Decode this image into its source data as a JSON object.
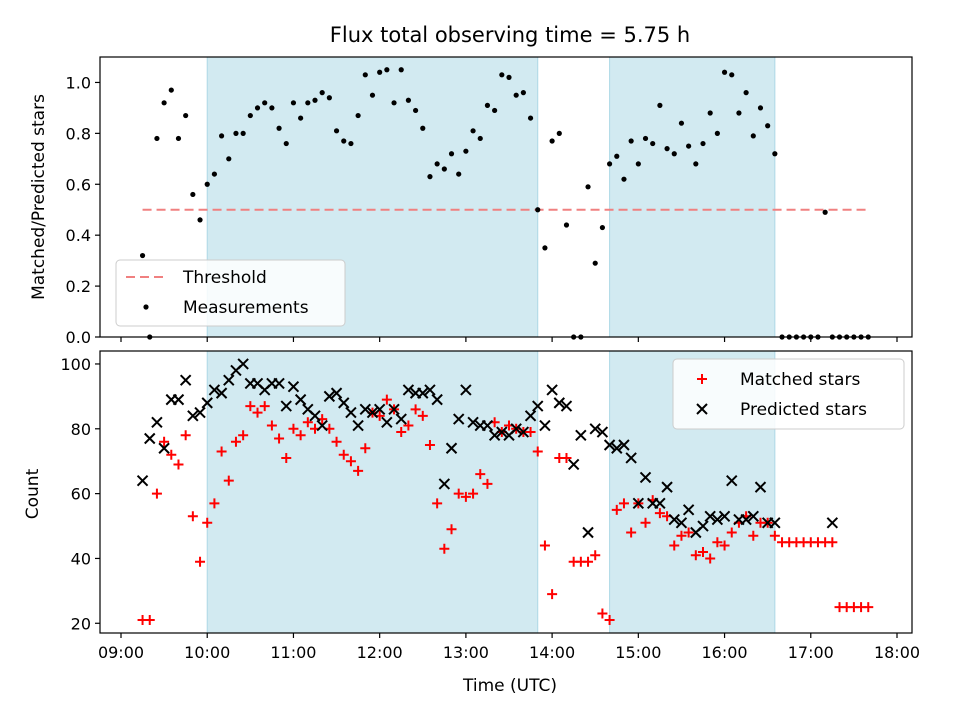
{
  "title": "Flux total observing time = 5.75 h",
  "colors": {
    "shade": "#add8e6",
    "threshold": "#f08080",
    "measurement": "#000000",
    "matched": "#ff0000",
    "predicted": "#000000"
  },
  "chart_data": [
    {
      "type": "scatter",
      "xlabel": "",
      "ylabel": "Matched/Predicted stars",
      "xlim": [
        "09:00",
        "18:00"
      ],
      "ylim": [
        0,
        1.1
      ],
      "yticks": [
        "0.0",
        "0.2",
        "0.4",
        "0.6",
        "0.8",
        "1.0"
      ],
      "grid": false,
      "legend_position": "lower-left",
      "shaded_intervals": [
        [
          "10:00",
          "13:50"
        ],
        [
          "14:40",
          "16:35"
        ]
      ],
      "threshold": {
        "name": "Threshold",
        "y": 0.5,
        "x_range": [
          "09:15",
          "17:40"
        ]
      },
      "series": [
        {
          "name": "Measurements",
          "x": [
            "09:15",
            "09:20",
            "09:25",
            "09:30",
            "09:35",
            "09:40",
            "09:45",
            "09:50",
            "09:55",
            "10:00",
            "10:05",
            "10:10",
            "10:15",
            "10:20",
            "10:25",
            "10:30",
            "10:35",
            "10:40",
            "10:45",
            "10:50",
            "10:55",
            "11:00",
            "11:05",
            "11:10",
            "11:15",
            "11:20",
            "11:25",
            "11:30",
            "11:35",
            "11:40",
            "11:45",
            "11:50",
            "11:55",
            "12:00",
            "12:05",
            "12:10",
            "12:15",
            "12:20",
            "12:25",
            "12:30",
            "12:35",
            "12:40",
            "12:45",
            "12:50",
            "12:55",
            "13:00",
            "13:05",
            "13:10",
            "13:15",
            "13:20",
            "13:25",
            "13:30",
            "13:35",
            "13:40",
            "13:45",
            "13:50",
            "13:55",
            "14:00",
            "14:05",
            "14:10",
            "14:15",
            "14:20",
            "14:25",
            "14:30",
            "14:35",
            "14:40",
            "14:45",
            "14:50",
            "14:55",
            "15:00",
            "15:05",
            "15:10",
            "15:15",
            "15:20",
            "15:25",
            "15:30",
            "15:35",
            "15:40",
            "15:45",
            "15:50",
            "15:55",
            "16:00",
            "16:05",
            "16:10",
            "16:15",
            "16:20",
            "16:25",
            "16:30",
            "16:35",
            "16:40",
            "16:45",
            "16:50",
            "16:55",
            "17:00",
            "17:05",
            "17:10",
            "17:15",
            "17:20",
            "17:25",
            "17:30",
            "17:35",
            "17:40"
          ],
          "y": [
            0.32,
            0.0,
            0.78,
            0.92,
            0.97,
            0.78,
            0.87,
            0.56,
            0.46,
            0.6,
            0.64,
            0.79,
            0.7,
            0.8,
            0.8,
            0.87,
            0.9,
            0.92,
            0.9,
            0.82,
            0.76,
            0.92,
            0.86,
            0.92,
            0.93,
            0.96,
            0.94,
            0.81,
            0.77,
            0.76,
            0.87,
            1.03,
            0.95,
            1.04,
            1.05,
            0.92,
            1.05,
            0.93,
            0.89,
            0.82,
            0.63,
            0.68,
            0.66,
            0.72,
            0.64,
            0.73,
            0.81,
            0.78,
            0.91,
            0.89,
            1.03,
            1.02,
            0.95,
            0.96,
            0.86,
            0.5,
            0.35,
            0.77,
            0.8,
            0.44,
            0.0,
            0.0,
            0.59,
            0.29,
            0.43,
            0.68,
            0.71,
            0.62,
            0.77,
            0.68,
            0.78,
            0.76,
            0.91,
            0.74,
            0.72,
            0.84,
            0.75,
            0.68,
            0.76,
            0.88,
            0.8,
            1.04,
            1.03,
            0.88,
            0.96,
            0.79,
            0.9,
            0.83,
            0.72,
            0.0,
            0.0,
            0.0,
            0.0,
            0.0,
            0.0,
            0.49,
            0.0,
            0.0,
            0.0,
            0.0,
            0.0,
            0.0
          ]
        }
      ]
    },
    {
      "type": "scatter",
      "xlabel": "Time (UTC)",
      "ylabel": "Count",
      "xlim": [
        "09:00",
        "18:00"
      ],
      "ylim": [
        17,
        104
      ],
      "xticks": [
        "09:00",
        "10:00",
        "11:00",
        "12:00",
        "13:00",
        "14:00",
        "15:00",
        "16:00",
        "17:00",
        "18:00"
      ],
      "yticks": [
        "20",
        "40",
        "60",
        "80",
        "100"
      ],
      "grid": false,
      "legend_position": "upper-right",
      "shaded_intervals": [
        [
          "10:00",
          "13:50"
        ],
        [
          "14:40",
          "16:35"
        ]
      ],
      "series": [
        {
          "name": "Matched stars",
          "marker": "+",
          "x": [
            "09:15",
            "09:20",
            "09:25",
            "09:30",
            "09:35",
            "09:40",
            "09:45",
            "09:50",
            "09:55",
            "10:00",
            "10:05",
            "10:10",
            "10:15",
            "10:20",
            "10:25",
            "10:30",
            "10:35",
            "10:40",
            "10:45",
            "10:50",
            "10:55",
            "11:00",
            "11:05",
            "11:10",
            "11:15",
            "11:20",
            "11:25",
            "11:30",
            "11:35",
            "11:40",
            "11:45",
            "11:50",
            "11:55",
            "12:00",
            "12:05",
            "12:10",
            "12:15",
            "12:20",
            "12:25",
            "12:30",
            "12:35",
            "12:40",
            "12:45",
            "12:50",
            "12:55",
            "13:00",
            "13:05",
            "13:10",
            "13:15",
            "13:20",
            "13:25",
            "13:30",
            "13:35",
            "13:40",
            "13:45",
            "13:50",
            "13:55",
            "14:00",
            "14:05",
            "14:10",
            "14:15",
            "14:20",
            "14:25",
            "14:30",
            "14:35",
            "14:40",
            "14:45",
            "14:50",
            "14:55",
            "15:00",
            "15:05",
            "15:10",
            "15:15",
            "15:20",
            "15:25",
            "15:30",
            "15:35",
            "15:40",
            "15:45",
            "15:50",
            "15:55",
            "16:00",
            "16:05",
            "16:10",
            "16:15",
            "16:20",
            "16:25",
            "16:30",
            "16:35",
            "16:40",
            "16:45",
            "16:50",
            "16:55",
            "17:00",
            "17:05",
            "17:10",
            "17:15",
            "17:20",
            "17:25",
            "17:30",
            "17:35",
            "17:40"
          ],
          "y": [
            21,
            21,
            60,
            76,
            72,
            69,
            78,
            53,
            39,
            51,
            57,
            73,
            64,
            76,
            78,
            87,
            85,
            87,
            81,
            77,
            71,
            80,
            78,
            82,
            80,
            83,
            80,
            76,
            72,
            70,
            67,
            74,
            85,
            84,
            89,
            86,
            79,
            81,
            86,
            84,
            75,
            57,
            43,
            49,
            60,
            59,
            60,
            66,
            63,
            82,
            79,
            81,
            80,
            79,
            79,
            73,
            44,
            29,
            71,
            71,
            39,
            39,
            39,
            41,
            23,
            21,
            55,
            57,
            48,
            57,
            51,
            58,
            54,
            53,
            44,
            47,
            48,
            41,
            42,
            40,
            45,
            44,
            48,
            51,
            53,
            47,
            51,
            51,
            47,
            45,
            45,
            45,
            45,
            45,
            45,
            45,
            45,
            25,
            25,
            25,
            25,
            25
          ]
        },
        {
          "name": "Predicted stars",
          "marker": "x",
          "x": [
            "09:15",
            "09:20",
            "09:25",
            "09:30",
            "09:35",
            "09:40",
            "09:45",
            "09:50",
            "09:55",
            "10:00",
            "10:05",
            "10:10",
            "10:15",
            "10:20",
            "10:25",
            "10:30",
            "10:35",
            "10:40",
            "10:45",
            "10:50",
            "10:55",
            "11:00",
            "11:05",
            "11:10",
            "11:15",
            "11:20",
            "11:25",
            "11:30",
            "11:35",
            "11:40",
            "11:45",
            "11:50",
            "11:55",
            "12:00",
            "12:05",
            "12:10",
            "12:15",
            "12:20",
            "12:25",
            "12:30",
            "12:35",
            "12:40",
            "12:45",
            "12:50",
            "12:55",
            "13:00",
            "13:05",
            "13:10",
            "13:15",
            "13:20",
            "13:25",
            "13:30",
            "13:35",
            "13:40",
            "13:45",
            "13:50",
            "13:55",
            "14:00",
            "14:05",
            "14:10",
            "14:15",
            "14:20",
            "14:25",
            "14:30",
            "14:35",
            "14:40",
            "14:45",
            "14:50",
            "14:55",
            "15:00",
            "15:05",
            "15:10",
            "15:15",
            "15:20",
            "15:25",
            "15:30",
            "15:35",
            "15:40",
            "15:45",
            "15:50",
            "15:55",
            "16:00",
            "16:05",
            "16:10",
            "16:15",
            "16:20",
            "16:25",
            "16:30",
            "16:35",
            "17:15"
          ],
          "y": [
            64,
            77,
            82,
            74,
            89,
            89,
            95,
            84,
            85,
            88,
            92,
            91,
            95,
            98,
            100,
            94,
            94,
            92,
            94,
            94,
            87,
            93,
            89,
            86,
            84,
            81,
            90,
            91,
            88,
            85,
            81,
            86,
            85,
            86,
            82,
            86,
            83,
            92,
            91,
            91,
            92,
            89,
            63,
            74,
            83,
            92,
            82,
            81,
            81,
            78,
            79,
            78,
            80,
            79,
            84,
            87,
            81,
            92,
            88,
            87,
            69,
            78,
            48,
            80,
            79,
            75,
            74,
            75,
            71,
            57,
            65,
            57,
            57,
            62,
            52,
            51,
            55,
            48,
            50,
            53,
            52,
            53,
            64,
            52,
            52,
            53,
            62,
            51,
            51,
            51
          ]
        }
      ]
    }
  ]
}
